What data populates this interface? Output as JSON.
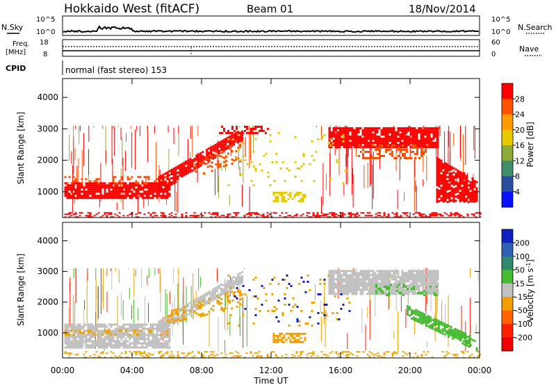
{
  "header": {
    "station": "Hokkaido West (fitACF)",
    "beam": "Beam 01",
    "date": "18/Nov/2014"
  },
  "status_panels": {
    "nsky_label": "N.Sky",
    "nsearch_label": "N.Search",
    "noise_ticks": [
      "10^5",
      "10^0"
    ],
    "freq_label_1": "Freq.",
    "freq_label_2": "[MHz]",
    "freq_ticks": [
      "18",
      "8"
    ],
    "nave_label": "Nave",
    "nave_ticks": [
      "60",
      "0"
    ],
    "cpid_label": "CPID",
    "cpid_text": "normal (fast stereo) 153"
  },
  "chart_data": [
    {
      "type": "heatmap",
      "title": "",
      "quantity": "Power",
      "ylabel": "Slant Range [km]",
      "xlabel": "",
      "x_ticks": [
        "00:00",
        "04:00",
        "08:00",
        "12:00",
        "16:00",
        "20:00",
        "00:00"
      ],
      "x_range_hours": [
        0,
        24
      ],
      "y_ticks": [
        1000,
        2000,
        3000,
        4000
      ],
      "ylim": [
        180,
        4600
      ],
      "colorbar": {
        "label": "Power [dB]",
        "ticks": [
          28,
          24,
          20,
          16,
          12,
          8,
          4
        ],
        "colors": [
          "#ff0000",
          "#ff5000",
          "#ff9a00",
          "#e8c800",
          "#8fa83a",
          "#3f8f6a",
          "#2a4fa0",
          "#0a10ff"
        ]
      },
      "features": [
        {
          "name": "near-range echo band",
          "range_km": [
            800,
            1300
          ],
          "hours": [
            0,
            6
          ],
          "power_db": 28
        },
        {
          "name": "rising echo band",
          "range_km": [
            1200,
            3000
          ],
          "hours": [
            6,
            10.3
          ],
          "power_db": 28
        },
        {
          "name": "afternoon far-range echoes",
          "range_km": [
            2300,
            3000
          ],
          "hours": [
            15.3,
            21.5
          ],
          "power_db": 28
        },
        {
          "name": "descending echo band",
          "range_km": [
            700,
            2100
          ],
          "hours": [
            21.5,
            24
          ],
          "power_db": 28
        },
        {
          "name": "weak patch",
          "range_km": [
            700,
            1000
          ],
          "hours": [
            12,
            14
          ],
          "power_db": 20
        }
      ]
    },
    {
      "type": "heatmap",
      "title": "",
      "quantity": "Velocity",
      "ylabel": "Slant Range [km]",
      "xlabel": "Time UT",
      "x_ticks": [
        "00:00",
        "04:00",
        "08:00",
        "12:00",
        "16:00",
        "20:00",
        "00:00"
      ],
      "x_range_hours": [
        0,
        24
      ],
      "y_ticks": [
        1000,
        2000,
        3000,
        4000
      ],
      "ylim": [
        180,
        4600
      ],
      "colorbar": {
        "label": "Velocity [m s",
        "label_sup": "-1",
        "label_end": "]",
        "ticks": [
          200,
          100,
          50,
          15,
          -15,
          -50,
          -100,
          -200
        ],
        "colors": [
          "#1020c0",
          "#3060b0",
          "#2e8a6e",
          "#44bb30",
          "#c0c0c0",
          "#f0a000",
          "#ff6000",
          "#ff2000",
          "#ee0000"
        ]
      },
      "features": [
        {
          "name": "near-range band",
          "range_km": [
            500,
            1300
          ],
          "hours": [
            0,
            6
          ],
          "velocity": 0
        },
        {
          "name": "rising band",
          "range_km": [
            1300,
            3000
          ],
          "hours": [
            6,
            10.3
          ],
          "velocity": 0
        },
        {
          "name": "afternoon band",
          "range_km": [
            2300,
            3000
          ],
          "hours": [
            15.3,
            21.5
          ],
          "velocity": 0
        },
        {
          "name": "descending band",
          "range_km": [
            600,
            1900
          ],
          "hours": [
            20,
            23.5
          ],
          "velocity": 30
        },
        {
          "name": "negative patch",
          "range_km": [
            700,
            1000
          ],
          "hours": [
            12,
            14
          ],
          "velocity": -50
        }
      ]
    }
  ]
}
